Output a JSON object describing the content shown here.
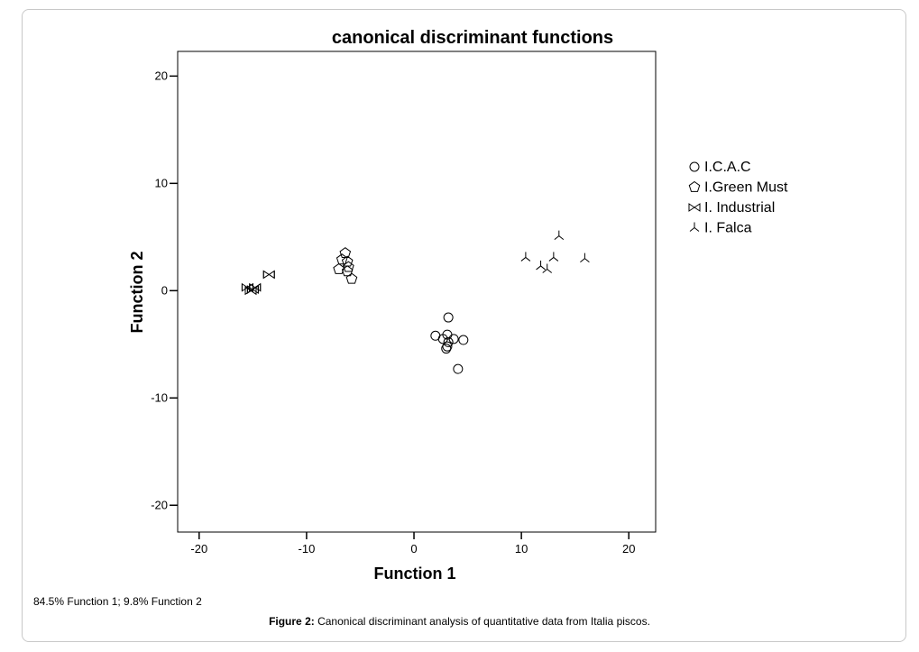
{
  "note": "84.5% Function 1; 9.8% Function 2",
  "caption": {
    "label": "Figure 2:",
    "text": " Canonical discriminant analysis of quantitative data from Italia piscos."
  },
  "chart_data": {
    "type": "scatter",
    "title": "canonical discriminant functions",
    "xlabel": "Function 1",
    "ylabel": "Function 2",
    "xlim": [
      -22,
      22.5
    ],
    "ylim": [
      -22.5,
      22.3
    ],
    "xticks": [
      -20,
      -10,
      0,
      10,
      20
    ],
    "yticks": [
      20,
      10,
      0,
      -10,
      -20
    ],
    "grid": false,
    "legend_position": "right",
    "series": [
      {
        "name": "I.C.A.C",
        "marker": "circle",
        "points": [
          [
            3.2,
            -2.5
          ],
          [
            2.0,
            -4.2
          ],
          [
            3.1,
            -4.1
          ],
          [
            2.7,
            -4.5
          ],
          [
            3.7,
            -4.5
          ],
          [
            4.6,
            -4.6
          ],
          [
            3.2,
            -4.8
          ],
          [
            3.1,
            -5.2
          ],
          [
            3.0,
            -5.4
          ],
          [
            4.1,
            -7.3
          ]
        ]
      },
      {
        "name": "I.Green Must",
        "marker": "pentagon",
        "points": [
          [
            -6.4,
            3.5
          ],
          [
            -6.7,
            2.9
          ],
          [
            -6.2,
            2.7
          ],
          [
            -6.1,
            2.2
          ],
          [
            -7.0,
            2.0
          ],
          [
            -6.2,
            1.8
          ],
          [
            -5.8,
            1.1
          ]
        ]
      },
      {
        "name": "I. Industrial",
        "marker": "bowtie",
        "points": [
          [
            -13.5,
            1.5
          ],
          [
            -15.5,
            0.3
          ],
          [
            -14.8,
            0.3
          ],
          [
            -15.2,
            0.0
          ],
          [
            -15.0,
            0.1
          ]
        ]
      },
      {
        "name": "I. Falca",
        "marker": "tristar",
        "points": [
          [
            13.5,
            5.1
          ],
          [
            10.4,
            3.1
          ],
          [
            13.0,
            3.1
          ],
          [
            15.9,
            3.0
          ],
          [
            11.8,
            2.3
          ],
          [
            12.4,
            2.0
          ]
        ]
      }
    ]
  }
}
